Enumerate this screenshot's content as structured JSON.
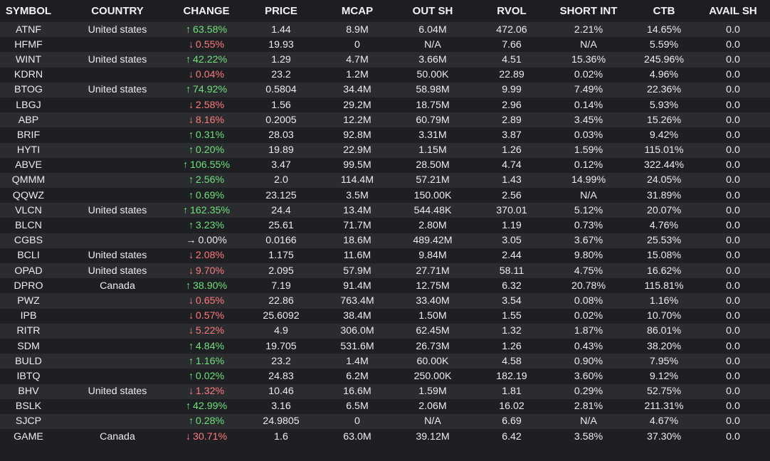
{
  "columns": {
    "symbol": "SYMBOL",
    "country": "COUNTRY",
    "change": "CHANGE",
    "price": "PRICE",
    "mcap": "MCAP",
    "out_sh": "OUT SH",
    "rvol": "RVOL",
    "short_int": "SHORT INT",
    "ctb": "CTB",
    "avail_sh": "AVAIL SH"
  },
  "colors": {
    "up": "#6fe07a",
    "down": "#ff7a7a",
    "background": "#1d1e22",
    "row_odd": "#2b2c30",
    "row_even": "#1e1f23"
  },
  "icons": {
    "up": "arrow-up-icon",
    "down": "arrow-down-icon",
    "flat": "arrow-right-icon"
  },
  "rows": [
    {
      "symbol": "ATNF",
      "country": "United states",
      "dir": "up",
      "change": "63.58%",
      "price": "1.44",
      "mcap": "8.9M",
      "out_sh": "6.04M",
      "rvol": "472.06",
      "short_int": "2.21%",
      "ctb": "14.65%",
      "avail_sh": "0.0"
    },
    {
      "symbol": "HFMF",
      "country": "",
      "dir": "down",
      "change": "0.55%",
      "price": "19.93",
      "mcap": "0",
      "out_sh": "N/A",
      "rvol": "7.66",
      "short_int": "N/A",
      "ctb": "5.59%",
      "avail_sh": "0.0"
    },
    {
      "symbol": "WINT",
      "country": "United states",
      "dir": "up",
      "change": "42.22%",
      "price": "1.29",
      "mcap": "4.7M",
      "out_sh": "3.66M",
      "rvol": "4.51",
      "short_int": "15.36%",
      "ctb": "245.96%",
      "avail_sh": "0.0"
    },
    {
      "symbol": "KDRN",
      "country": "",
      "dir": "down",
      "change": "0.04%",
      "price": "23.2",
      "mcap": "1.2M",
      "out_sh": "50.00K",
      "rvol": "22.89",
      "short_int": "0.02%",
      "ctb": "4.96%",
      "avail_sh": "0.0"
    },
    {
      "symbol": "BTOG",
      "country": "United states",
      "dir": "up",
      "change": "74.92%",
      "price": "0.5804",
      "mcap": "34.4M",
      "out_sh": "58.98M",
      "rvol": "9.99",
      "short_int": "7.49%",
      "ctb": "22.36%",
      "avail_sh": "0.0"
    },
    {
      "symbol": "LBGJ",
      "country": "",
      "dir": "down",
      "change": "2.58%",
      "price": "1.56",
      "mcap": "29.2M",
      "out_sh": "18.75M",
      "rvol": "2.96",
      "short_int": "0.14%",
      "ctb": "5.93%",
      "avail_sh": "0.0"
    },
    {
      "symbol": "ABP",
      "country": "",
      "dir": "down",
      "change": "8.16%",
      "price": "0.2005",
      "mcap": "12.2M",
      "out_sh": "60.79M",
      "rvol": "2.89",
      "short_int": "3.45%",
      "ctb": "15.26%",
      "avail_sh": "0.0"
    },
    {
      "symbol": "BRIF",
      "country": "",
      "dir": "up",
      "change": "0.31%",
      "price": "28.03",
      "mcap": "92.8M",
      "out_sh": "3.31M",
      "rvol": "3.87",
      "short_int": "0.03%",
      "ctb": "9.42%",
      "avail_sh": "0.0"
    },
    {
      "symbol": "HYTI",
      "country": "",
      "dir": "up",
      "change": "0.20%",
      "price": "19.89",
      "mcap": "22.9M",
      "out_sh": "1.15M",
      "rvol": "1.26",
      "short_int": "1.59%",
      "ctb": "115.01%",
      "avail_sh": "0.0"
    },
    {
      "symbol": "ABVE",
      "country": "",
      "dir": "up",
      "change": "106.55%",
      "price": "3.47",
      "mcap": "99.5M",
      "out_sh": "28.50M",
      "rvol": "4.74",
      "short_int": "0.12%",
      "ctb": "322.44%",
      "avail_sh": "0.0"
    },
    {
      "symbol": "QMMM",
      "country": "",
      "dir": "up",
      "change": "2.56%",
      "price": "2.0",
      "mcap": "114.4M",
      "out_sh": "57.21M",
      "rvol": "1.43",
      "short_int": "14.99%",
      "ctb": "24.05%",
      "avail_sh": "0.0"
    },
    {
      "symbol": "QQWZ",
      "country": "",
      "dir": "up",
      "change": "0.69%",
      "price": "23.125",
      "mcap": "3.5M",
      "out_sh": "150.00K",
      "rvol": "2.56",
      "short_int": "N/A",
      "ctb": "31.89%",
      "avail_sh": "0.0"
    },
    {
      "symbol": "VLCN",
      "country": "United states",
      "dir": "up",
      "change": "162.35%",
      "price": "24.4",
      "mcap": "13.4M",
      "out_sh": "544.48K",
      "rvol": "370.01",
      "short_int": "5.12%",
      "ctb": "20.07%",
      "avail_sh": "0.0"
    },
    {
      "symbol": "BLCN",
      "country": "",
      "dir": "up",
      "change": "3.23%",
      "price": "25.61",
      "mcap": "71.7M",
      "out_sh": "2.80M",
      "rvol": "1.19",
      "short_int": "0.73%",
      "ctb": "4.76%",
      "avail_sh": "0.0"
    },
    {
      "symbol": "CGBS",
      "country": "",
      "dir": "flat",
      "change": "0.00%",
      "price": "0.0166",
      "mcap": "18.6M",
      "out_sh": "489.42M",
      "rvol": "3.05",
      "short_int": "3.67%",
      "ctb": "25.53%",
      "avail_sh": "0.0"
    },
    {
      "symbol": "BCLI",
      "country": "United states",
      "dir": "down",
      "change": "2.08%",
      "price": "1.175",
      "mcap": "11.6M",
      "out_sh": "9.84M",
      "rvol": "2.44",
      "short_int": "9.80%",
      "ctb": "15.08%",
      "avail_sh": "0.0"
    },
    {
      "symbol": "OPAD",
      "country": "United states",
      "dir": "down",
      "change": "9.70%",
      "price": "2.095",
      "mcap": "57.9M",
      "out_sh": "27.71M",
      "rvol": "58.11",
      "short_int": "4.75%",
      "ctb": "16.62%",
      "avail_sh": "0.0"
    },
    {
      "symbol": "DPRO",
      "country": "Canada",
      "dir": "up",
      "change": "38.90%",
      "price": "7.19",
      "mcap": "91.4M",
      "out_sh": "12.75M",
      "rvol": "6.32",
      "short_int": "20.78%",
      "ctb": "115.81%",
      "avail_sh": "0.0"
    },
    {
      "symbol": "PWZ",
      "country": "",
      "dir": "down",
      "change": "0.65%",
      "price": "22.86",
      "mcap": "763.4M",
      "out_sh": "33.40M",
      "rvol": "3.54",
      "short_int": "0.08%",
      "ctb": "1.16%",
      "avail_sh": "0.0"
    },
    {
      "symbol": "IPB",
      "country": "",
      "dir": "down",
      "change": "0.57%",
      "price": "25.6092",
      "mcap": "38.4M",
      "out_sh": "1.50M",
      "rvol": "1.55",
      "short_int": "0.02%",
      "ctb": "10.70%",
      "avail_sh": "0.0"
    },
    {
      "symbol": "RITR",
      "country": "",
      "dir": "down",
      "change": "5.22%",
      "price": "4.9",
      "mcap": "306.0M",
      "out_sh": "62.45M",
      "rvol": "1.32",
      "short_int": "1.87%",
      "ctb": "86.01%",
      "avail_sh": "0.0"
    },
    {
      "symbol": "SDM",
      "country": "",
      "dir": "up",
      "change": "4.84%",
      "price": "19.705",
      "mcap": "531.6M",
      "out_sh": "26.73M",
      "rvol": "1.26",
      "short_int": "0.43%",
      "ctb": "38.20%",
      "avail_sh": "0.0"
    },
    {
      "symbol": "BULD",
      "country": "",
      "dir": "up",
      "change": "1.16%",
      "price": "23.2",
      "mcap": "1.4M",
      "out_sh": "60.00K",
      "rvol": "4.58",
      "short_int": "0.90%",
      "ctb": "7.95%",
      "avail_sh": "0.0"
    },
    {
      "symbol": "IBTQ",
      "country": "",
      "dir": "up",
      "change": "0.02%",
      "price": "24.83",
      "mcap": "6.2M",
      "out_sh": "250.00K",
      "rvol": "182.19",
      "short_int": "3.60%",
      "ctb": "9.12%",
      "avail_sh": "0.0"
    },
    {
      "symbol": "BHV",
      "country": "United states",
      "dir": "down",
      "change": "1.32%",
      "price": "10.46",
      "mcap": "16.6M",
      "out_sh": "1.59M",
      "rvol": "1.81",
      "short_int": "0.29%",
      "ctb": "52.75%",
      "avail_sh": "0.0"
    },
    {
      "symbol": "BSLK",
      "country": "",
      "dir": "up",
      "change": "42.99%",
      "price": "3.16",
      "mcap": "6.5M",
      "out_sh": "2.06M",
      "rvol": "16.02",
      "short_int": "2.81%",
      "ctb": "211.31%",
      "avail_sh": "0.0"
    },
    {
      "symbol": "SJCP",
      "country": "",
      "dir": "up",
      "change": "0.28%",
      "price": "24.9805",
      "mcap": "0",
      "out_sh": "N/A",
      "rvol": "6.69",
      "short_int": "N/A",
      "ctb": "4.67%",
      "avail_sh": "0.0"
    },
    {
      "symbol": "GAME",
      "country": "Canada",
      "dir": "down",
      "change": "30.71%",
      "price": "1.6",
      "mcap": "63.0M",
      "out_sh": "39.12M",
      "rvol": "6.42",
      "short_int": "3.58%",
      "ctb": "37.30%",
      "avail_sh": "0.0"
    }
  ]
}
